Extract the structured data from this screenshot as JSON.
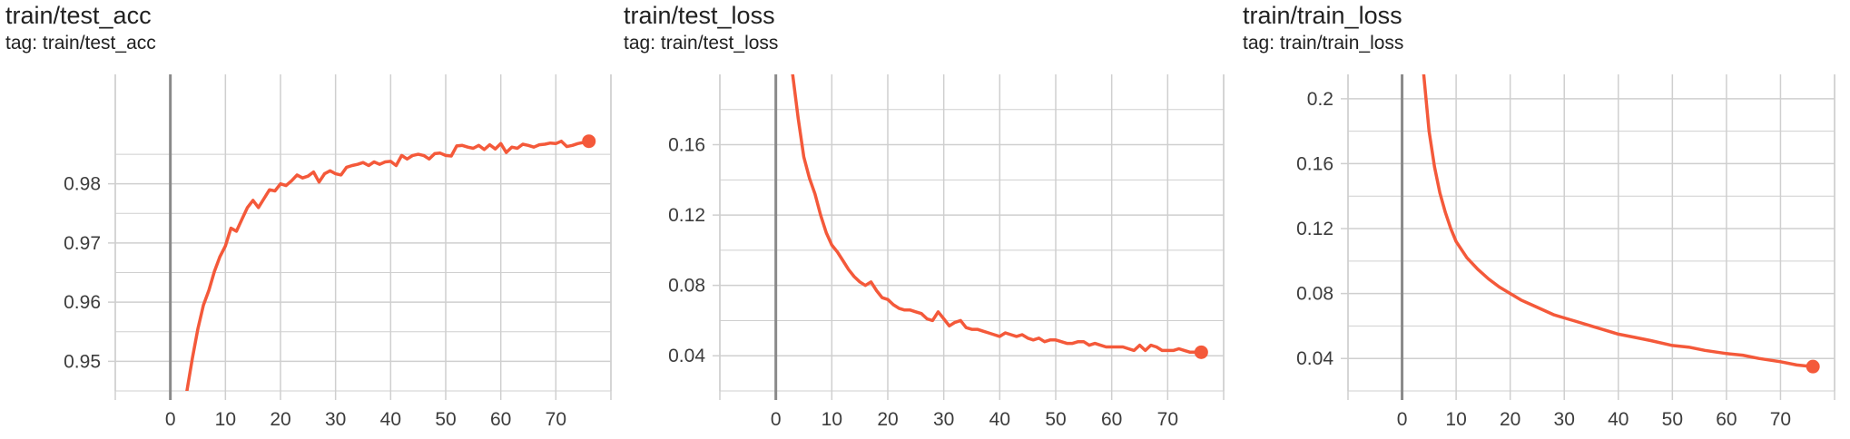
{
  "colors": {
    "series": "#f4593a",
    "grid": "#cfcfcf",
    "zero_line": "#8a8a8a",
    "text": "#212121"
  },
  "panels": [
    {
      "title": "train/test_acc",
      "tag": "tag: train/test_acc"
    },
    {
      "title": "train/test_loss",
      "tag": "tag: train/test_loss"
    },
    {
      "title": "train/train_loss",
      "tag": "tag: train/train_loss"
    }
  ],
  "chart_data": [
    {
      "type": "line",
      "title": "train/test_acc",
      "subtitle": "tag: train/test_acc",
      "xlim": [
        -10,
        80
      ],
      "ylim": [
        0.945,
        0.9985
      ],
      "x_ticks": [
        0,
        10,
        20,
        30,
        40,
        50,
        60,
        70
      ],
      "x_tick_labels": [
        "0",
        "10",
        "20",
        "30",
        "40",
        "50",
        "60",
        "70"
      ],
      "y_ticks": [
        0.95,
        0.96,
        0.97,
        0.98
      ],
      "y_tick_labels": [
        "0.95",
        "0.96",
        "0.97",
        "0.98"
      ],
      "grid": true,
      "series": [
        {
          "color": "#f4593a",
          "x": [
            3,
            4,
            5,
            6,
            7,
            8,
            9,
            10,
            11,
            12,
            13,
            14,
            15,
            16,
            17,
            18,
            19,
            20,
            21,
            22,
            23,
            24,
            25,
            26,
            27,
            28,
            29,
            30,
            31,
            32,
            33,
            34,
            35,
            36,
            37,
            38,
            39,
            40,
            41,
            42,
            43,
            44,
            45,
            46,
            47,
            48,
            49,
            50,
            51,
            52,
            53,
            54,
            55,
            56,
            57,
            58,
            59,
            60,
            61,
            62,
            63,
            64,
            65,
            66,
            67,
            68,
            69,
            70,
            71,
            72,
            73,
            74,
            75,
            76
          ],
          "y": [
            0.945,
            0.9505,
            0.9555,
            0.9595,
            0.962,
            0.9652,
            0.9677,
            0.9695,
            0.9725,
            0.972,
            0.974,
            0.976,
            0.9772,
            0.976,
            0.9775,
            0.979,
            0.9788,
            0.98,
            0.9797,
            0.9805,
            0.9815,
            0.981,
            0.9813,
            0.982,
            0.9803,
            0.9817,
            0.9822,
            0.9817,
            0.9815,
            0.9828,
            0.9831,
            0.9833,
            0.9836,
            0.9831,
            0.9837,
            0.9833,
            0.9837,
            0.9838,
            0.9831,
            0.9848,
            0.9842,
            0.9848,
            0.985,
            0.9848,
            0.9842,
            0.9851,
            0.9852,
            0.9848,
            0.9847,
            0.9864,
            0.9865,
            0.9862,
            0.986,
            0.9865,
            0.9858,
            0.9866,
            0.9859,
            0.9868,
            0.9853,
            0.9862,
            0.986,
            0.9867,
            0.9865,
            0.9862,
            0.9866,
            0.9867,
            0.9869,
            0.9868,
            0.9872,
            0.9863,
            0.9865,
            0.9868,
            0.987,
            0.9872
          ]
        }
      ]
    },
    {
      "type": "line",
      "title": "train/test_loss",
      "subtitle": "tag: train/test_loss",
      "xlim": [
        -10,
        80
      ],
      "ylim": [
        0.02,
        0.2
      ],
      "x_ticks": [
        0,
        10,
        20,
        30,
        40,
        50,
        60,
        70
      ],
      "x_tick_labels": [
        "0",
        "10",
        "20",
        "30",
        "40",
        "50",
        "60",
        "70"
      ],
      "y_ticks": [
        0.04,
        0.08,
        0.12,
        0.16
      ],
      "y_tick_labels": [
        "0.04",
        "0.08",
        "0.12",
        "0.16"
      ],
      "grid": true,
      "series": [
        {
          "color": "#f4593a",
          "x": [
            3,
            4,
            5,
            6,
            7,
            8,
            9,
            10,
            11,
            12,
            13,
            14,
            15,
            16,
            17,
            18,
            19,
            20,
            21,
            22,
            23,
            24,
            25,
            26,
            27,
            28,
            29,
            30,
            31,
            32,
            33,
            34,
            35,
            36,
            37,
            38,
            39,
            40,
            41,
            42,
            43,
            44,
            45,
            46,
            47,
            48,
            49,
            50,
            51,
            52,
            53,
            54,
            55,
            56,
            57,
            58,
            59,
            60,
            61,
            62,
            63,
            64,
            65,
            66,
            67,
            68,
            69,
            70,
            71,
            72,
            73,
            74,
            75,
            76
          ],
          "y": [
            0.2,
            0.175,
            0.153,
            0.141,
            0.132,
            0.12,
            0.11,
            0.103,
            0.099,
            0.094,
            0.089,
            0.085,
            0.082,
            0.08,
            0.082,
            0.077,
            0.073,
            0.072,
            0.069,
            0.067,
            0.066,
            0.066,
            0.065,
            0.064,
            0.061,
            0.06,
            0.065,
            0.061,
            0.057,
            0.059,
            0.06,
            0.056,
            0.055,
            0.055,
            0.054,
            0.053,
            0.052,
            0.051,
            0.053,
            0.052,
            0.051,
            0.052,
            0.05,
            0.049,
            0.05,
            0.048,
            0.049,
            0.049,
            0.048,
            0.047,
            0.047,
            0.048,
            0.048,
            0.046,
            0.047,
            0.046,
            0.045,
            0.045,
            0.045,
            0.045,
            0.044,
            0.043,
            0.046,
            0.043,
            0.046,
            0.045,
            0.043,
            0.043,
            0.043,
            0.044,
            0.043,
            0.042,
            0.042,
            0.042
          ]
        }
      ]
    },
    {
      "type": "line",
      "title": "train/train_loss",
      "subtitle": "tag: train/train_loss",
      "xlim": [
        -10,
        80
      ],
      "ylim": [
        0.02,
        0.215
      ],
      "x_ticks": [
        0,
        10,
        20,
        30,
        40,
        50,
        60,
        70
      ],
      "x_tick_labels": [
        "0",
        "10",
        "20",
        "30",
        "40",
        "50",
        "60",
        "70"
      ],
      "y_ticks": [
        0.04,
        0.08,
        0.12,
        0.16,
        0.2
      ],
      "y_tick_labels": [
        "0.04",
        "0.08",
        "0.12",
        "0.16",
        "0.2"
      ],
      "grid": true,
      "series": [
        {
          "color": "#f4593a",
          "x": [
            4,
            5,
            6,
            7,
            8,
            9,
            10,
            12,
            14,
            16,
            18,
            20,
            22,
            24,
            26,
            28,
            30,
            32,
            35,
            38,
            40,
            43,
            46,
            50,
            53,
            56,
            60,
            63,
            66,
            70,
            73,
            76
          ],
          "y": [
            0.215,
            0.18,
            0.158,
            0.142,
            0.13,
            0.12,
            0.112,
            0.102,
            0.095,
            0.089,
            0.084,
            0.08,
            0.076,
            0.073,
            0.07,
            0.067,
            0.065,
            0.063,
            0.06,
            0.057,
            0.055,
            0.053,
            0.051,
            0.048,
            0.047,
            0.045,
            0.043,
            0.042,
            0.04,
            0.038,
            0.036,
            0.035
          ]
        }
      ]
    }
  ]
}
